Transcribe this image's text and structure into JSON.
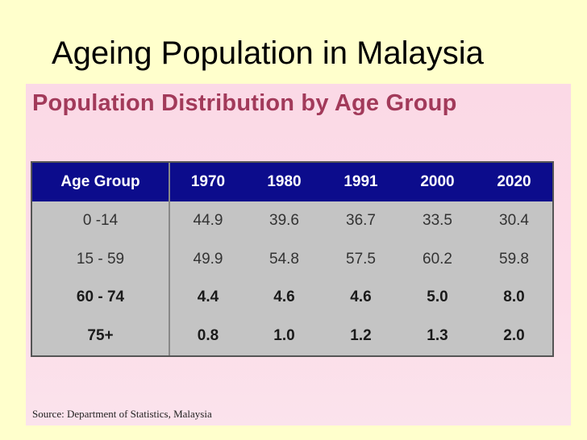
{
  "slide": {
    "title": "Ageing Population in Malaysia"
  },
  "panel": {
    "title": "Population Distribution by Age Group",
    "source": "Source: Department of Statistics, Malaysia"
  },
  "table": {
    "headers": [
      "Age Group",
      "1970",
      "1980",
      "1991",
      "2000",
      "2020"
    ],
    "rows": [
      {
        "cells": [
          "0 -14",
          "44.9",
          "39.6",
          "36.7",
          "33.5",
          "30.4"
        ]
      },
      {
        "cells": [
          "15 - 59",
          "49.9",
          "54.8",
          "57.5",
          "60.2",
          "59.8"
        ]
      },
      {
        "cells": [
          "60 - 74",
          "4.4",
          "4.6",
          "4.6",
          "5.0",
          "8.0"
        ]
      },
      {
        "cells": [
          "75+",
          "0.8",
          "1.0",
          "1.2",
          "1.3",
          "2.0"
        ]
      }
    ]
  },
  "colors": {
    "background": "#ffffcc",
    "panel": "#fcdce8",
    "panel_title": "#a23a5a",
    "header_bg": "#0c0c8c",
    "body_bg": "#c4c4c4"
  }
}
